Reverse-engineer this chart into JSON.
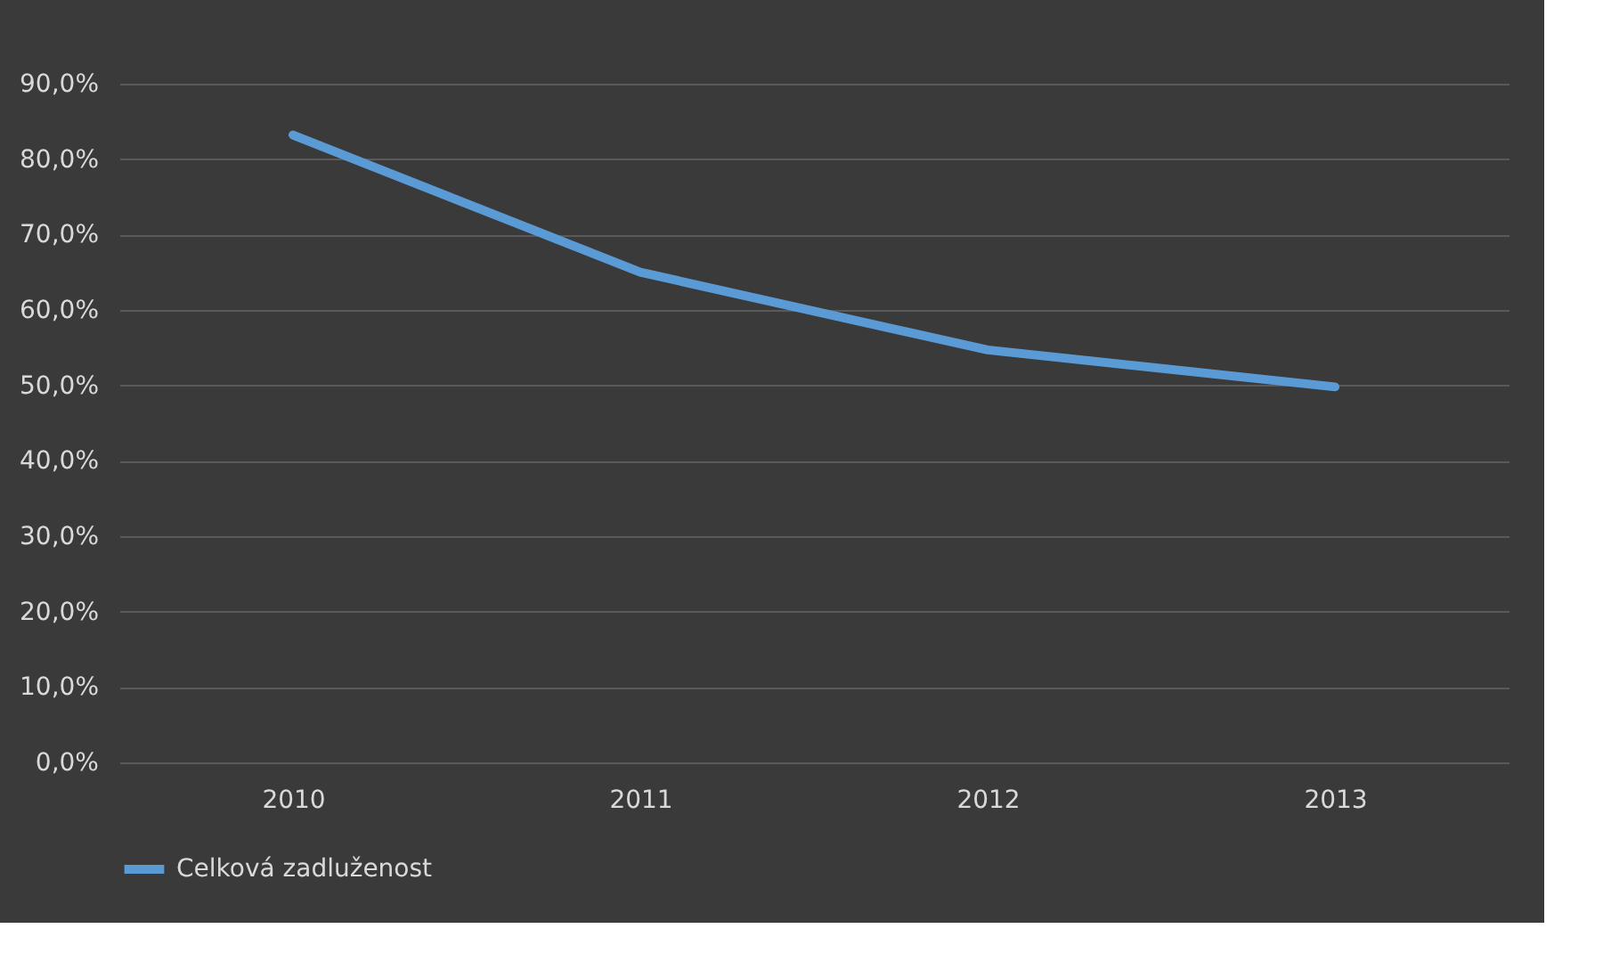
{
  "chart_data": {
    "type": "line",
    "categories": [
      "2010",
      "2011",
      "2012",
      "2013"
    ],
    "series": [
      {
        "name": "Celková zadluženost",
        "color": "#5b9bd5",
        "values": [
          83.2,
          65.0,
          54.7,
          49.8
        ]
      }
    ],
    "ylim": [
      0,
      90
    ],
    "yticks": [
      {
        "value": 0,
        "label": "0,0%"
      },
      {
        "value": 10,
        "label": "10,0%"
      },
      {
        "value": 20,
        "label": "20,0%"
      },
      {
        "value": 30,
        "label": "30,0%"
      },
      {
        "value": 40,
        "label": "40,0%"
      },
      {
        "value": 50,
        "label": "50,0%"
      },
      {
        "value": 60,
        "label": "60,0%"
      },
      {
        "value": 70,
        "label": "70,0%"
      },
      {
        "value": 80,
        "label": "80,0%"
      },
      {
        "value": 90,
        "label": "90,0%"
      }
    ],
    "grid": "y",
    "legend": "bottom",
    "marker": "none",
    "line_style": "solid"
  }
}
